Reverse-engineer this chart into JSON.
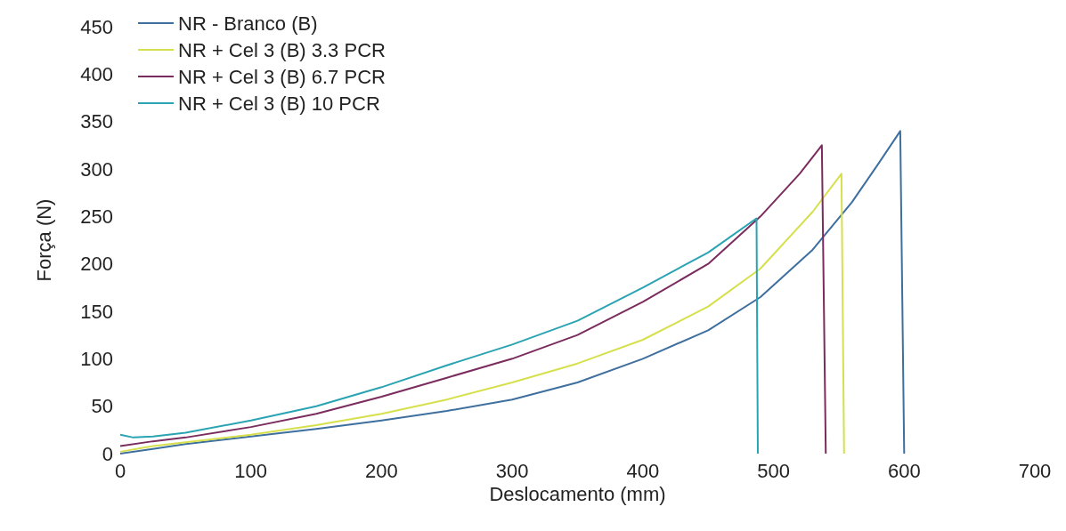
{
  "chart_data": {
    "type": "line",
    "xlabel": "Deslocamento (mm)",
    "ylabel": "Força (N)",
    "xlim": [
      0,
      700
    ],
    "xticks": [
      0,
      100,
      200,
      300,
      400,
      500,
      600,
      700
    ],
    "ylim": [
      0,
      450
    ],
    "yticks": [
      0,
      50,
      100,
      150,
      200,
      250,
      300,
      350,
      400,
      450
    ],
    "grid": false,
    "legend": "top left",
    "marker": "none",
    "line_style": "solid",
    "series": [
      {
        "name": "NR - Branco (B)",
        "color": "#3e6f9e",
        "x": [
          0,
          25,
          50,
          100,
          150,
          200,
          250,
          300,
          350,
          400,
          450,
          490,
          530,
          560,
          580,
          597,
          600
        ],
        "values": [
          0,
          5,
          10,
          18,
          26,
          35,
          45,
          57,
          75,
          100,
          130,
          165,
          215,
          265,
          305,
          340,
          0
        ]
      },
      {
        "name": "NR + Cel 3 (B) 3.3 PCR",
        "color": "#d6e04c",
        "x": [
          0,
          25,
          50,
          100,
          150,
          200,
          250,
          300,
          350,
          400,
          450,
          490,
          530,
          552,
          554
        ],
        "values": [
          2,
          8,
          12,
          20,
          30,
          42,
          57,
          75,
          95,
          120,
          155,
          195,
          255,
          295,
          0
        ]
      },
      {
        "name": "NR + Cel 3 (B) 6.7 PCR",
        "color": "#7b2c5e",
        "x": [
          0,
          25,
          50,
          100,
          150,
          200,
          250,
          300,
          350,
          400,
          450,
          490,
          520,
          537,
          540
        ],
        "values": [
          8,
          13,
          17,
          28,
          42,
          60,
          80,
          100,
          125,
          160,
          200,
          250,
          295,
          325,
          0
        ]
      },
      {
        "name": "NR + Cel 3 (B) 10 PCR",
        "color": "#2aa3b3",
        "x": [
          0,
          10,
          25,
          50,
          100,
          150,
          200,
          250,
          300,
          350,
          400,
          450,
          487,
          488
        ],
        "values": [
          20,
          17,
          18,
          22,
          35,
          50,
          70,
          93,
          115,
          140,
          175,
          212,
          248,
          0
        ]
      }
    ]
  }
}
